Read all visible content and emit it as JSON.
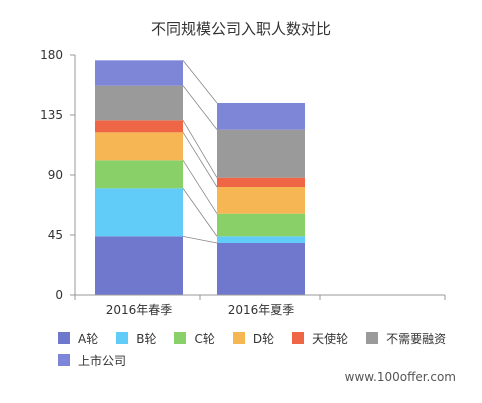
{
  "chart_data": {
    "type": "bar",
    "stacked": true,
    "title": "不同规模公司入职人数对比",
    "xlabel": "",
    "ylabel": "",
    "categories": [
      "2016年春季",
      "2016年夏季"
    ],
    "ylim": [
      0,
      180
    ],
    "yticks": [
      0,
      45,
      90,
      135,
      180
    ],
    "grid": false,
    "legend_position": "bottom",
    "series": [
      {
        "name": "A轮",
        "color": "#6f78cc",
        "values": [
          44,
          39
        ]
      },
      {
        "name": "B轮",
        "color": "#62ccf9",
        "values": [
          36,
          5
        ]
      },
      {
        "name": "C轮",
        "color": "#88d067",
        "values": [
          21,
          17
        ]
      },
      {
        "name": "D轮",
        "color": "#f6b654",
        "values": [
          21,
          20
        ]
      },
      {
        "name": "天使轮",
        "color": "#ee6645",
        "values": [
          9,
          7
        ]
      },
      {
        "name": "不需要融资",
        "color": "#9a9a9a",
        "values": [
          26,
          36
        ]
      },
      {
        "name": "上市公司",
        "color": "#7e86d8",
        "values": [
          19,
          20
        ]
      }
    ]
  },
  "watermark": "www.100offer.com"
}
